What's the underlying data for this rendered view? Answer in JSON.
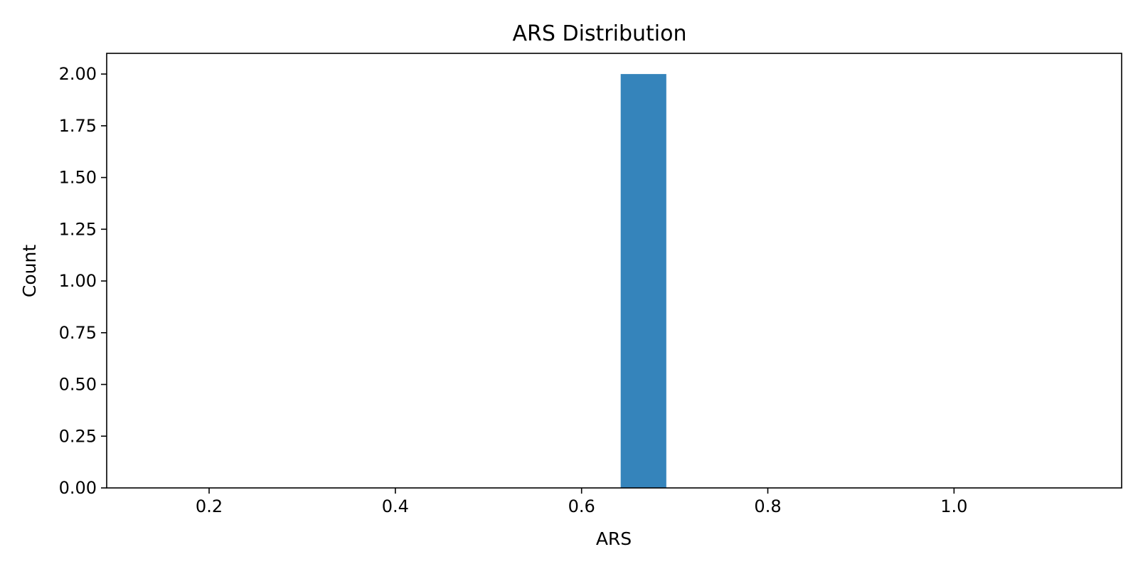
{
  "chart_data": {
    "type": "bar",
    "title": "ARS Distribution",
    "xlabel": "ARS",
    "ylabel": "Count",
    "xlim": [
      0.09,
      1.18
    ],
    "ylim": [
      0,
      2.1
    ],
    "x_ticks": [
      0.2,
      0.4,
      0.6,
      0.8,
      1.0
    ],
    "x_tick_labels": [
      "0.2",
      "0.4",
      "0.6",
      "0.8",
      "1.0"
    ],
    "y_ticks": [
      0,
      0.25,
      0.5,
      0.75,
      1.0,
      1.25,
      1.5,
      1.75,
      2.0
    ],
    "y_tick_labels": [
      "0.00",
      "0.25",
      "0.50",
      "0.75",
      "1.00",
      "1.25",
      "1.50",
      "1.75",
      "2.00"
    ],
    "bins": [
      {
        "start": 0.642,
        "end": 0.691,
        "count": 2
      }
    ],
    "bar_color": "#3584bb",
    "grid": false,
    "legend": "none"
  }
}
